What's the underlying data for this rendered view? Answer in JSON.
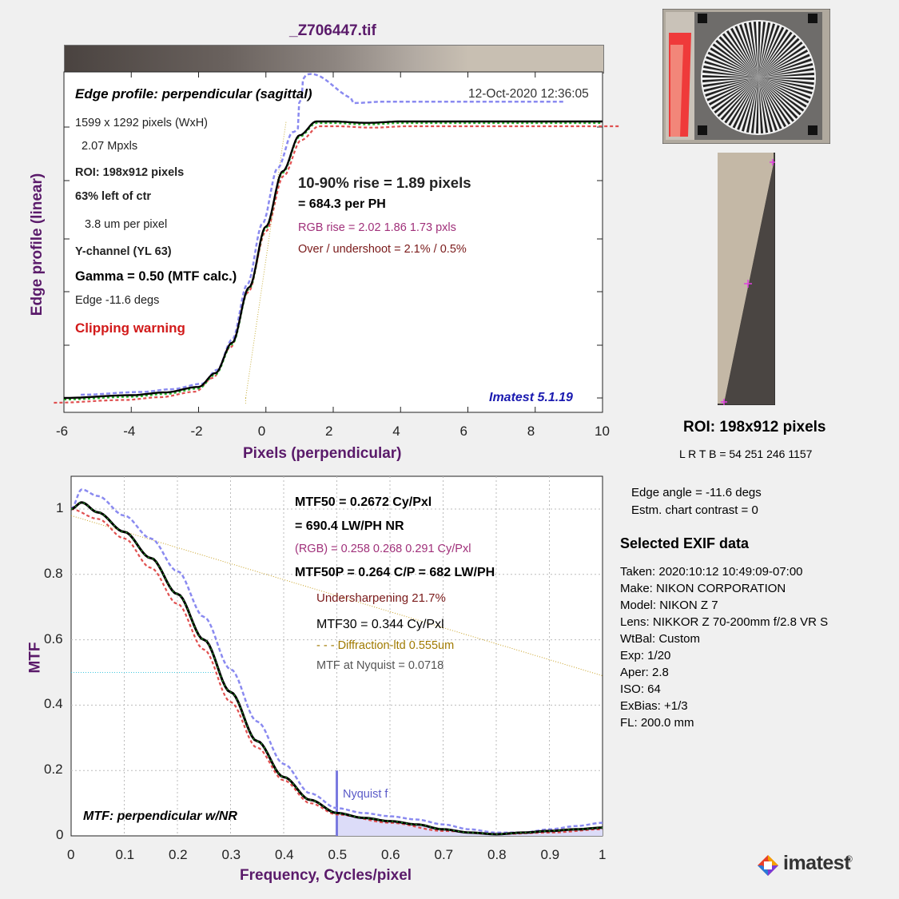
{
  "file_title": "_Z706447.tif",
  "edge_plot": {
    "heading": "Edge profile: perpendicular (sagittal)",
    "date": "12-Oct-2020 12:36:05",
    "ylabel": "Edge profile (linear)",
    "xlabel": "Pixels (perpendicular)",
    "info_lines": [
      "1599 x 1292 pixels (WxH)",
      "2.07 Mpxls"
    ],
    "roi": "ROI:  198x912 pixels",
    "left_of_ctr": "63% left of ctr",
    "um_per_pixel": "3.8 um per pixel",
    "channel": "Y-channel  (YL 63)",
    "gamma": "Gamma = 0.50 (MTF calc.)",
    "edge": "Edge  -11.6 degs",
    "clipping": "Clipping warning",
    "rise": "10-90% rise = 1.89 pixels",
    "per_ph": "=  684.3 per PH",
    "rgb_rise": "RGB rise =   2.02    1.86    1.73 pxls",
    "overshoot": "Over / undershoot =  2.1% /  0.5%",
    "version": "Imatest 5.1.19",
    "x_ticks": [
      "-6",
      "-4",
      "-2",
      "0",
      "2",
      "4",
      "6",
      "8",
      "10"
    ]
  },
  "mtf_plot": {
    "ylabel": "MTF",
    "xlabel": "Frequency, Cycles/pixel",
    "mtf50": "MTF50 = 0.2672 Cy/Pxl",
    "lwph": "= 690.4 LW/PH  NR",
    "rgb": "(RGB) = 0.258  0.268  0.291 Cy/Pxl",
    "mtf50p": "MTF50P = 0.264 C/P = 682 LW/PH",
    "undersharpening": "Undersharpening 21.7%",
    "mtf30": "MTF30 = 0.344 Cy/Pxl",
    "diffraction": "- - - Diffraction-ltd  0.555um",
    "nyquist_mtf": "MTF at Nyquist = 0.0718",
    "nyquist_label": "Nyquist f",
    "heading": "MTF: perpendicular w/NR",
    "x_ticks": [
      "0",
      "0.1",
      "0.2",
      "0.3",
      "0.4",
      "0.5",
      "0.6",
      "0.7",
      "0.8",
      "0.9",
      "1"
    ],
    "y_ticks": [
      "0",
      "0.2",
      "0.4",
      "0.6",
      "0.8",
      "1"
    ]
  },
  "roi_panel": {
    "label": "ROI:  198x912 pixels",
    "coords": "L R  T B = 54 251  246 1157"
  },
  "edge_info": {
    "angle": "Edge angle = -11.6 degs",
    "contrast": "Estm. chart contrast = 0"
  },
  "exif": {
    "heading": "Selected EXIF data",
    "lines": [
      "Taken: 2020:10:12 10:49:09-07:00",
      "Make:  NIKON CORPORATION",
      "Model:  NIKON Z 7",
      "Lens:   NIKKOR Z 70-200mm f/2.8 VR S",
      "WtBal: Custom",
      "Exp:     1/20",
      "Aper:    2.8",
      "ISO:     64",
      "ExBias: +1/3",
      "FL:      200.0 mm"
    ]
  },
  "logo": "imatest",
  "chart_data": [
    {
      "type": "line",
      "title": "Edge profile: perpendicular (sagittal)",
      "xlabel": "Pixels (perpendicular)",
      "ylabel": "Edge profile (linear)",
      "xlim": [
        -6,
        10
      ],
      "series": [
        {
          "name": "Y",
          "x": [
            -6,
            -4,
            -3,
            -2,
            -1.5,
            -1,
            -0.5,
            0,
            0.5,
            1,
            1.5,
            2,
            3,
            4,
            5,
            6,
            7,
            8,
            10
          ],
          "y": [
            0,
            0.01,
            0.02,
            0.04,
            0.09,
            0.2,
            0.4,
            0.62,
            0.82,
            0.95,
            1.0,
            1.0,
            0.995,
            1.0,
            1.0,
            1.0,
            1.0,
            1.0,
            1.0
          ]
        }
      ]
    },
    {
      "type": "line",
      "title": "MTF: perpendicular w/NR",
      "xlabel": "Frequency, Cycles/pixel",
      "ylabel": "MTF",
      "xlim": [
        0,
        1
      ],
      "ylim": [
        0,
        1.05
      ],
      "series": [
        {
          "name": "Y",
          "x": [
            0,
            0.02,
            0.05,
            0.1,
            0.15,
            0.2,
            0.25,
            0.3,
            0.35,
            0.4,
            0.45,
            0.5,
            0.55,
            0.6,
            0.65,
            0.7,
            0.75,
            0.8,
            0.85,
            0.9,
            0.95,
            1.0
          ],
          "y": [
            1.0,
            1.02,
            0.99,
            0.93,
            0.85,
            0.74,
            0.6,
            0.44,
            0.29,
            0.18,
            0.11,
            0.07,
            0.055,
            0.045,
            0.035,
            0.02,
            0.01,
            0.005,
            0.01,
            0.015,
            0.02,
            0.025
          ]
        },
        {
          "name": "R",
          "x": [
            0,
            0.05,
            0.1,
            0.15,
            0.2,
            0.25,
            0.3,
            0.35,
            0.4,
            0.45,
            0.5,
            0.6,
            0.7,
            0.8,
            0.9,
            1.0
          ],
          "y": [
            1.0,
            0.97,
            0.91,
            0.82,
            0.71,
            0.57,
            0.41,
            0.27,
            0.17,
            0.1,
            0.065,
            0.04,
            0.015,
            0.005,
            0.01,
            0.02
          ]
        },
        {
          "name": "B",
          "x": [
            0,
            0.02,
            0.05,
            0.1,
            0.15,
            0.2,
            0.25,
            0.3,
            0.35,
            0.4,
            0.45,
            0.5,
            0.55,
            0.6,
            0.65,
            0.7,
            0.75,
            0.8,
            0.85,
            0.9,
            0.95,
            1.0
          ],
          "y": [
            1.0,
            1.06,
            1.04,
            0.98,
            0.91,
            0.81,
            0.67,
            0.51,
            0.35,
            0.22,
            0.13,
            0.085,
            0.07,
            0.06,
            0.05,
            0.035,
            0.02,
            0.01,
            0.01,
            0.02,
            0.03,
            0.04
          ]
        },
        {
          "name": "Diffraction-ltd",
          "x": [
            0,
            1.0
          ],
          "y": [
            0.98,
            0.49
          ]
        }
      ],
      "nyquist": 0.5,
      "mtf50_level": 0.5
    }
  ]
}
